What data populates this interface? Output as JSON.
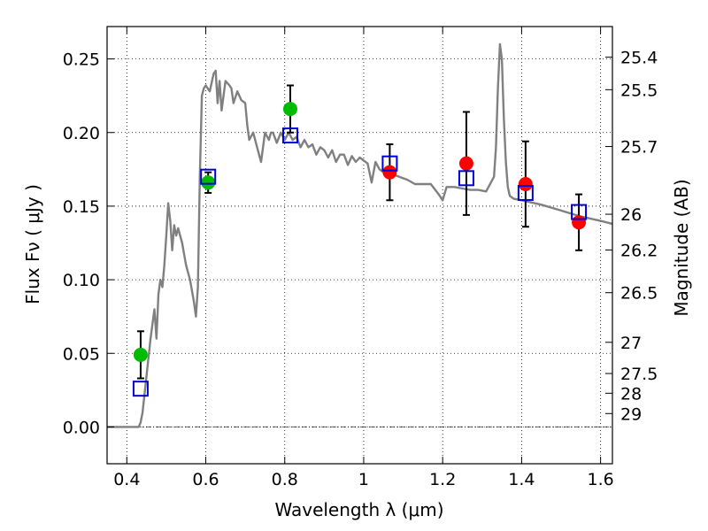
{
  "chart_data": {
    "type": "scatter",
    "xlabel": "Wavelength  λ (μm)",
    "ylabel": "Flux  Fν  ( μJy )",
    "y2label": "Magnitude (AB)",
    "xlim": [
      0.35,
      1.63
    ],
    "ylim": [
      -0.025,
      0.272
    ],
    "grid": true,
    "x_ticks": [
      0.4,
      0.6,
      0.8,
      1.0,
      1.2,
      1.4,
      1.6
    ],
    "x_tick_labels": [
      "0.4",
      "0.6",
      "0.8",
      "1",
      "1.2",
      "1.4",
      "1.6"
    ],
    "y_ticks": [
      0.0,
      0.05,
      0.1,
      0.15,
      0.2,
      0.25
    ],
    "y_tick_labels": [
      "0.00",
      "0.05",
      "0.10",
      "0.15",
      "0.20",
      "0.25"
    ],
    "magnitude_ticks": [
      {
        "label": "25.4",
        "flux": 0.2512
      },
      {
        "label": "25.5",
        "flux": 0.2291
      },
      {
        "label": "25.7",
        "flux": 0.1905
      },
      {
        "label": "26",
        "flux": 0.1445
      },
      {
        "label": "26.2",
        "flux": 0.1202
      },
      {
        "label": "26.5",
        "flux": 0.0912
      },
      {
        "label": "27",
        "flux": 0.0575
      },
      {
        "label": "27.5",
        "flux": 0.0363
      },
      {
        "label": "28",
        "flux": 0.0229
      },
      {
        "label": "29",
        "flux": 0.0091
      }
    ],
    "series": [
      {
        "type": "line",
        "color": "#808080",
        "x": [
          0.35,
          0.4,
          0.43,
          0.435,
          0.44,
          0.45,
          0.46,
          0.465,
          0.47,
          0.475,
          0.48,
          0.485,
          0.49,
          0.495,
          0.5,
          0.505,
          0.51,
          0.515,
          0.52,
          0.525,
          0.53,
          0.54,
          0.55,
          0.56,
          0.57,
          0.575,
          0.58,
          0.585,
          0.59,
          0.595,
          0.6,
          0.61,
          0.62,
          0.625,
          0.63,
          0.635,
          0.64,
          0.65,
          0.66,
          0.665,
          0.67,
          0.68,
          0.69,
          0.7,
          0.705,
          0.71,
          0.72,
          0.73,
          0.74,
          0.75,
          0.76,
          0.765,
          0.77,
          0.78,
          0.79,
          0.8,
          0.81,
          0.82,
          0.83,
          0.84,
          0.85,
          0.86,
          0.87,
          0.88,
          0.89,
          0.9,
          0.91,
          0.92,
          0.93,
          0.94,
          0.95,
          0.96,
          0.97,
          0.98,
          0.99,
          1.0,
          1.01,
          1.02,
          1.03,
          1.04,
          1.05,
          1.07,
          1.09,
          1.11,
          1.13,
          1.15,
          1.17,
          1.19,
          1.2,
          1.21,
          1.23,
          1.25,
          1.27,
          1.29,
          1.31,
          1.33,
          1.335,
          1.34,
          1.345,
          1.35,
          1.355,
          1.36,
          1.365,
          1.37,
          1.38,
          1.4,
          1.45,
          1.5,
          1.55,
          1.6,
          1.63
        ],
        "y": [
          0.0,
          0.0,
          0.0,
          0.003,
          0.01,
          0.035,
          0.06,
          0.07,
          0.08,
          0.06,
          0.09,
          0.1,
          0.095,
          0.11,
          0.13,
          0.152,
          0.14,
          0.12,
          0.137,
          0.13,
          0.135,
          0.125,
          0.11,
          0.1,
          0.085,
          0.075,
          0.095,
          0.17,
          0.225,
          0.23,
          0.232,
          0.228,
          0.24,
          0.242,
          0.22,
          0.235,
          0.215,
          0.235,
          0.232,
          0.23,
          0.22,
          0.228,
          0.222,
          0.22,
          0.205,
          0.195,
          0.2,
          0.19,
          0.18,
          0.2,
          0.195,
          0.2,
          0.2,
          0.193,
          0.2,
          0.195,
          0.2,
          0.195,
          0.197,
          0.19,
          0.195,
          0.19,
          0.192,
          0.185,
          0.19,
          0.188,
          0.183,
          0.188,
          0.18,
          0.185,
          0.185,
          0.178,
          0.184,
          0.18,
          0.183,
          0.181,
          0.179,
          0.166,
          0.18,
          0.175,
          0.173,
          0.172,
          0.17,
          0.168,
          0.165,
          0.165,
          0.165,
          0.158,
          0.154,
          0.163,
          0.163,
          0.162,
          0.161,
          0.161,
          0.16,
          0.17,
          0.19,
          0.23,
          0.26,
          0.25,
          0.21,
          0.18,
          0.163,
          0.157,
          0.155,
          0.154,
          0.151,
          0.147,
          0.143,
          0.14,
          0.138
        ]
      },
      {
        "type": "scatter",
        "marker": "circle",
        "color": "#00bb00",
        "x": [
          0.435,
          0.606,
          0.814
        ],
        "y": [
          0.049,
          0.166,
          0.216
        ],
        "yerr": [
          0.016,
          0.007,
          0.016
        ]
      },
      {
        "type": "scatter",
        "marker": "circle",
        "color": "#ff0000",
        "x": [
          1.066,
          1.26,
          1.41,
          1.545
        ],
        "y": [
          0.173,
          0.179,
          0.165,
          0.139
        ],
        "yerr": [
          0.019,
          0.035,
          0.029,
          0.019
        ]
      },
      {
        "type": "scatter",
        "marker": "open-square",
        "color": "#0000dd",
        "x": [
          0.435,
          0.606,
          0.814,
          1.066,
          1.26,
          1.41,
          1.545
        ],
        "y": [
          0.026,
          0.17,
          0.198,
          0.179,
          0.169,
          0.159,
          0.146
        ]
      }
    ]
  }
}
